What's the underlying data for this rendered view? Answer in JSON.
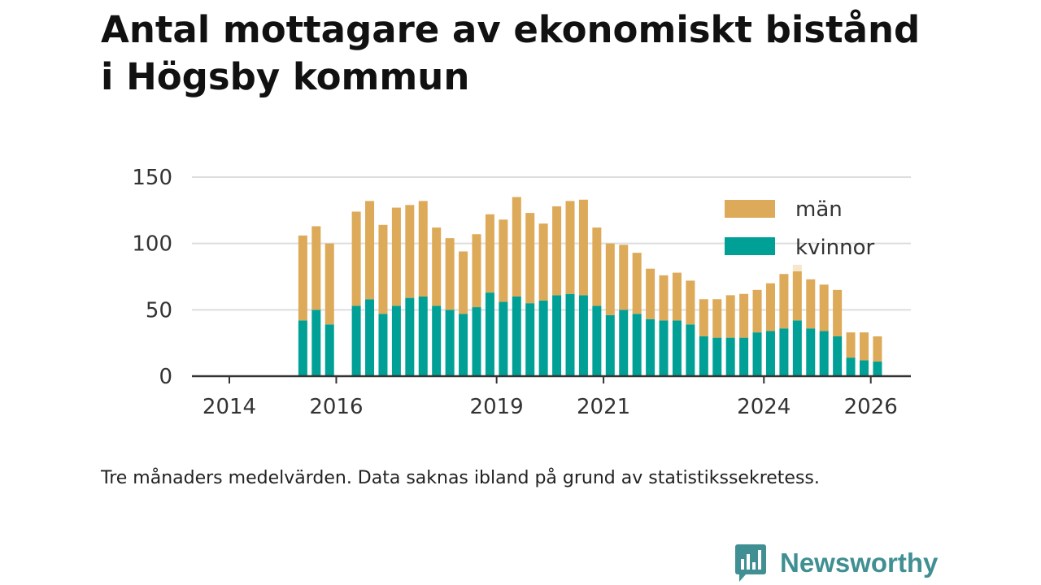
{
  "title": {
    "line1": "Antal mottagare av ekonomiskt bistånd",
    "line2": "i Högsby kommun"
  },
  "note": "Tre månaders medelvärden. Data saknas ibland på grund av statistikssekretess.",
  "brand": {
    "name": "Newsworthy",
    "icon": "newsworthy-logo-icon",
    "color": "#3f8f93"
  },
  "colors": {
    "man": "#dcaa58",
    "kvinnor": "#00a096",
    "preliminary": "#f5e6cc",
    "grid": "#dddddd",
    "axis": "#333333",
    "text": "#333333"
  },
  "chart_data": {
    "type": "bar",
    "stacked": true,
    "title": "Antal mottagare av ekonomiskt bistånd i Högsby kommun",
    "xlabel": "",
    "ylabel": "",
    "ylim": [
      0,
      150
    ],
    "yticks": [
      "0",
      "50",
      "100",
      "150"
    ],
    "xticks": [
      {
        "label": "2014",
        "x": 2014.0
      },
      {
        "label": "2016",
        "x": 2016.0
      },
      {
        "label": "2019",
        "x": 2019.0
      },
      {
        "label": "2021",
        "x": 2021.0
      },
      {
        "label": "2024",
        "x": 2024.0
      },
      {
        "label": "2026",
        "x": 2026.0
      }
    ],
    "grid": true,
    "legend_position": "top-right",
    "x_unit": "quarter (decimal year)",
    "x": [
      2015.375,
      2015.625,
      2015.875,
      2016.375,
      2016.625,
      2016.875,
      2017.125,
      2017.375,
      2017.625,
      2017.875,
      2018.125,
      2018.375,
      2018.625,
      2018.875,
      2019.125,
      2019.375,
      2019.625,
      2019.875,
      2020.125,
      2020.375,
      2020.625,
      2020.875,
      2021.125,
      2021.375,
      2021.625,
      2021.875,
      2022.125,
      2022.375,
      2022.625,
      2022.875,
      2023.125,
      2023.375,
      2023.625,
      2023.875,
      2024.125,
      2024.375,
      2024.625,
      2024.875,
      2025.125,
      2025.375,
      2025.625,
      2025.875,
      2026.125
    ],
    "series": [
      {
        "name": "kvinnor",
        "color": "#00a096",
        "values": [
          42,
          50,
          39,
          53,
          58,
          47,
          53,
          59,
          60,
          53,
          50,
          47,
          52,
          63,
          56,
          60,
          55,
          57,
          61,
          62,
          61,
          53,
          46,
          50,
          47,
          43,
          42,
          42,
          39,
          30,
          29,
          29,
          29,
          33,
          34,
          36,
          42,
          36,
          34,
          30,
          14,
          12,
          11
        ]
      },
      {
        "name": "män",
        "color": "#dcaa58",
        "values": [
          64,
          63,
          61,
          71,
          74,
          67,
          74,
          70,
          72,
          59,
          54,
          47,
          55,
          59,
          62,
          75,
          68,
          58,
          67,
          70,
          72,
          59,
          54,
          49,
          46,
          38,
          34,
          36,
          33,
          28,
          29,
          32,
          33,
          32,
          36,
          41,
          37,
          37,
          35,
          35,
          19,
          21,
          19
        ]
      }
    ],
    "preliminary_top": {
      "x": 2024.625,
      "value": 84
    }
  }
}
